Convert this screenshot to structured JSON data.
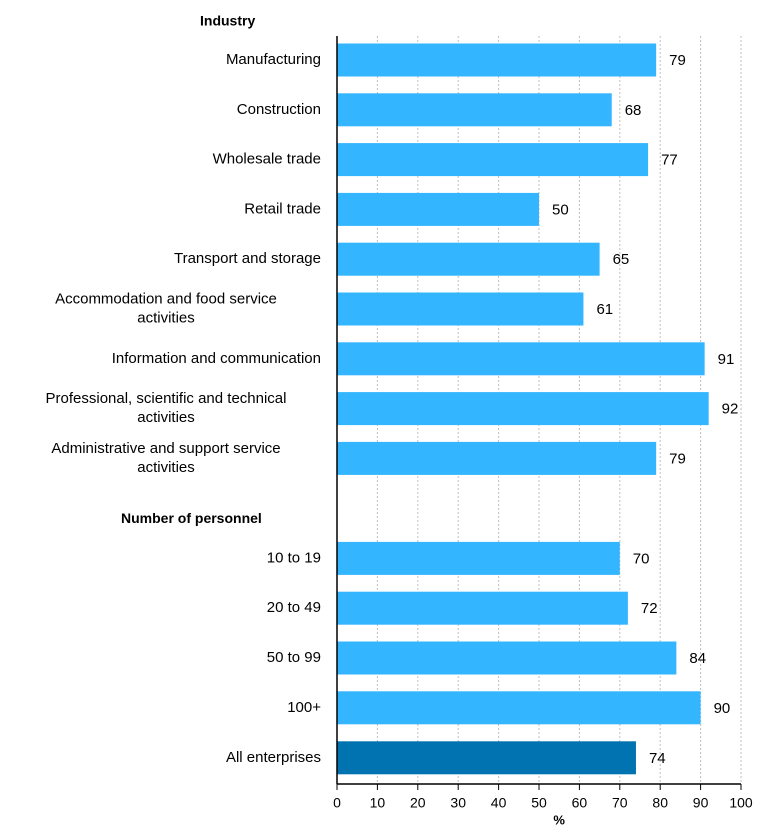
{
  "chart_data": {
    "type": "bar",
    "orientation": "horizontal",
    "xlabel": "%",
    "ylabel": "",
    "xlim": [
      0,
      100
    ],
    "x_ticks": [
      0,
      10,
      20,
      30,
      40,
      50,
      60,
      70,
      80,
      90,
      100
    ],
    "grid": "vertical dashed",
    "colors": {
      "default_bar": "#33b5ff",
      "highlight_bar": "#0073b0",
      "axis": "#000000",
      "grid": "#bfbfbf"
    },
    "groups": [
      {
        "label": "Industry",
        "bars": [
          {
            "category": [
              "Manufacturing"
            ],
            "value": 79
          },
          {
            "category": [
              "Construction"
            ],
            "value": 68
          },
          {
            "category": [
              "Wholesale trade"
            ],
            "value": 77
          },
          {
            "category": [
              "Retail trade"
            ],
            "value": 50
          },
          {
            "category": [
              "Transport and storage"
            ],
            "value": 65
          },
          {
            "category": [
              "Accommodation and food service",
              "activities"
            ],
            "value": 61
          },
          {
            "category": [
              "Information and communication"
            ],
            "value": 91
          },
          {
            "category": [
              "Professional, scientific and technical",
              "activities"
            ],
            "value": 92
          },
          {
            "category": [
              "Administrative and support service",
              "activities"
            ],
            "value": 79
          }
        ]
      },
      {
        "label": "Number of personnel",
        "bars": [
          {
            "category": [
              "10 to 19"
            ],
            "value": 70
          },
          {
            "category": [
              "20 to 49"
            ],
            "value": 72
          },
          {
            "category": [
              "50 to 99"
            ],
            "value": 84
          },
          {
            "category": [
              "100+"
            ],
            "value": 90
          }
        ]
      },
      {
        "label": "",
        "bars": [
          {
            "category": [
              "All enterprises"
            ],
            "value": 74,
            "highlight": true
          }
        ]
      }
    ]
  }
}
